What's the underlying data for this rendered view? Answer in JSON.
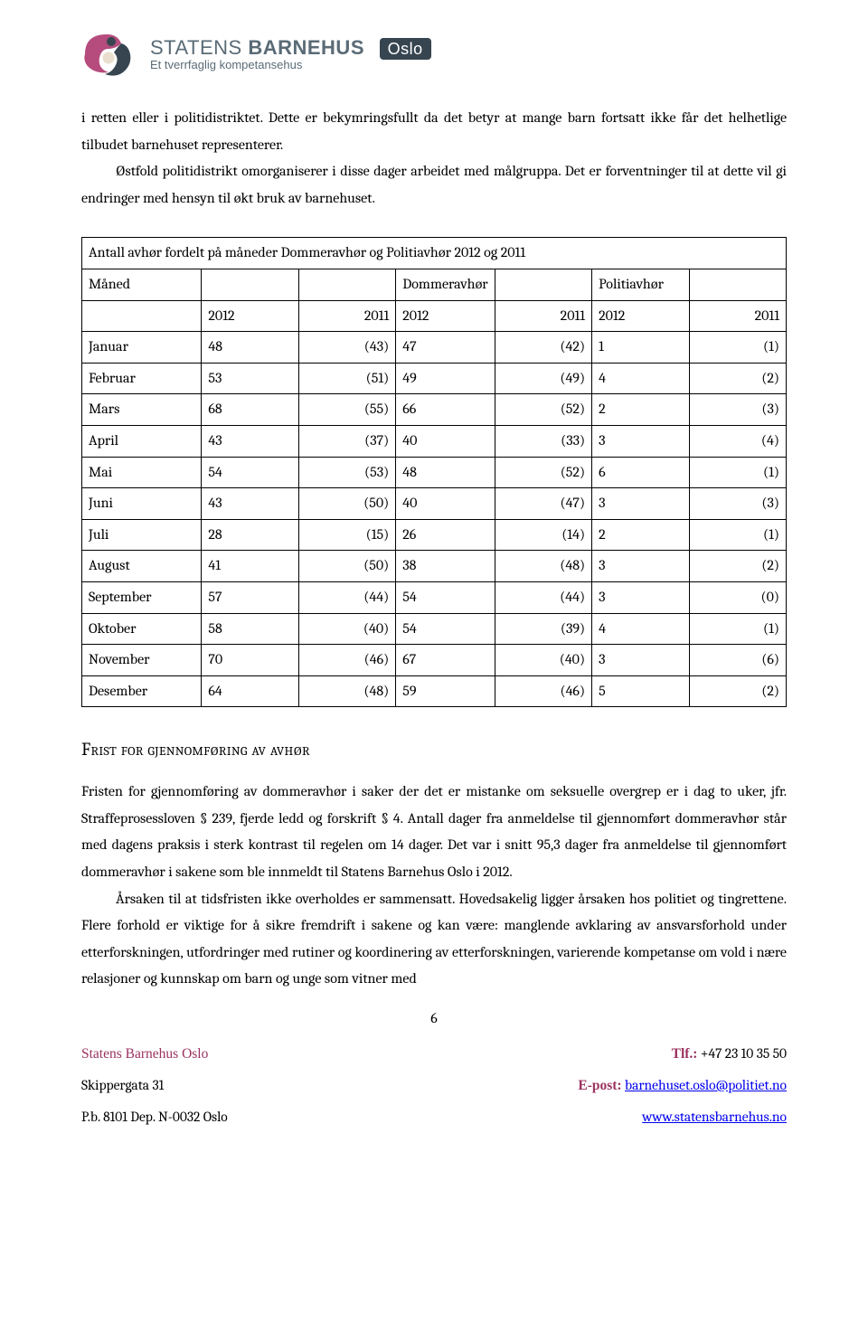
{
  "logo": {
    "title_plain": "STATENS ",
    "title_bold": "BARNEHUS",
    "subtitle": "Et tverrfaglig kompetansehus",
    "badge": "Oslo"
  },
  "para1": "i retten eller i politidistriktet. Dette er bekymringsfullt da det betyr at mange barn fortsatt ikke får det helhetlige tilbudet barnehuset representerer.",
  "para2": "Østfold politidistrikt omorganiserer i disse dager arbeidet med målgruppa. Det er forventninger til at dette vil gi endringer med hensyn til økt bruk av barnehuset.",
  "table": {
    "caption": "Antall avhør fordelt på måneder Dommeravhør og Politiavhør 2012 og 2011",
    "headers": {
      "month": "Måned",
      "dom": "Dommeravhør",
      "pol": "Politiavhør"
    },
    "years": {
      "y12": "2012",
      "y11": "2011"
    },
    "rows": [
      {
        "month": "Januar",
        "tot12": "48",
        "tot11": "(43)",
        "dom12": "47",
        "dom11": "(42)",
        "pol12": "1",
        "pol11": "(1)"
      },
      {
        "month": "Februar",
        "tot12": "53",
        "tot11": "(51)",
        "dom12": "49",
        "dom11": "(49)",
        "pol12": "4",
        "pol11": "(2)"
      },
      {
        "month": "Mars",
        "tot12": "68",
        "tot11": "(55)",
        "dom12": "66",
        "dom11": "(52)",
        "pol12": "2",
        "pol11": "(3)"
      },
      {
        "month": "April",
        "tot12": "43",
        "tot11": "(37)",
        "dom12": "40",
        "dom11": "(33)",
        "pol12": "3",
        "pol11": "(4)"
      },
      {
        "month": "Mai",
        "tot12": "54",
        "tot11": "(53)",
        "dom12": "48",
        "dom11": "(52)",
        "pol12": "6",
        "pol11": "(1)"
      },
      {
        "month": "Juni",
        "tot12": "43",
        "tot11": "(50)",
        "dom12": "40",
        "dom11": "(47)",
        "pol12": "3",
        "pol11": "(3)"
      },
      {
        "month": "Juli",
        "tot12": "28",
        "tot11": "(15)",
        "dom12": "26",
        "dom11": "(14)",
        "pol12": "2",
        "pol11": "(1)"
      },
      {
        "month": "August",
        "tot12": "41",
        "tot11": "(50)",
        "dom12": "38",
        "dom11": "(48)",
        "pol12": "3",
        "pol11": "(2)"
      },
      {
        "month": "September",
        "tot12": "57",
        "tot11": "(44)",
        "dom12": "54",
        "dom11": "(44)",
        "pol12": "3",
        "pol11": "(0)"
      },
      {
        "month": "Oktober",
        "tot12": "58",
        "tot11": "(40)",
        "dom12": "54",
        "dom11": "(39)",
        "pol12": "4",
        "pol11": "(1)"
      },
      {
        "month": "November",
        "tot12": "70",
        "tot11": "(46)",
        "dom12": "67",
        "dom11": "(40)",
        "pol12": "3",
        "pol11": "(6)"
      },
      {
        "month": "Desember",
        "tot12": "64",
        "tot11": "(48)",
        "dom12": "59",
        "dom11": "(46)",
        "pol12": "5",
        "pol11": "(2)"
      }
    ]
  },
  "section_heading": "Frist for gjennomføring av avhør",
  "para3": "Fristen for gjennomføring av dommeravhør i saker der det er mistanke om seksuelle overgrep er i dag to uker, jfr. Straffeprosessloven § 239, fjerde ledd og forskrift § 4. Antall dager fra anmeldelse til gjennomført dommeravhør står med dagens praksis i sterk kontrast til regelen om 14 dager. Det var i snitt 95,3 dager fra anmeldelse til gjennomført dommeravhør i sakene som ble innmeldt til Statens Barnehus Oslo i 2012.",
  "para4": "Årsaken til at tidsfristen ikke overholdes er sammensatt. Hovedsakelig ligger årsaken hos politiet og tingrettene.  Flere forhold er viktige for å sikre fremdrift i sakene og kan være: manglende avklaring av ansvarsforhold under etterforskningen, utfordringer med rutiner og koordinering av etterforskningen, varierende kompetanse om vold i nære relasjoner og kunnskap om barn og unge som vitner med",
  "page_number": "6",
  "footer": {
    "org": "Statens Barnehus Oslo",
    "addr1": "Skippergata 31",
    "addr2": "P.b. 8101 Dep. N-0032 Oslo",
    "tlf_label": "Tlf.:",
    "tlf": " +47 23 10 35 50",
    "epost_label": "E-post:",
    "epost": "barnehuset.oslo@politiet.no",
    "web": "www.statensbarnehus.no"
  },
  "colors": {
    "brand_dark": "#374550",
    "brand_pink": "#b54c7d",
    "brand_text": "#5a6b76",
    "footer_accent": "#9b3360",
    "link": "#0000ee",
    "text": "#000000",
    "background": "#ffffff",
    "table_border": "#000000"
  }
}
